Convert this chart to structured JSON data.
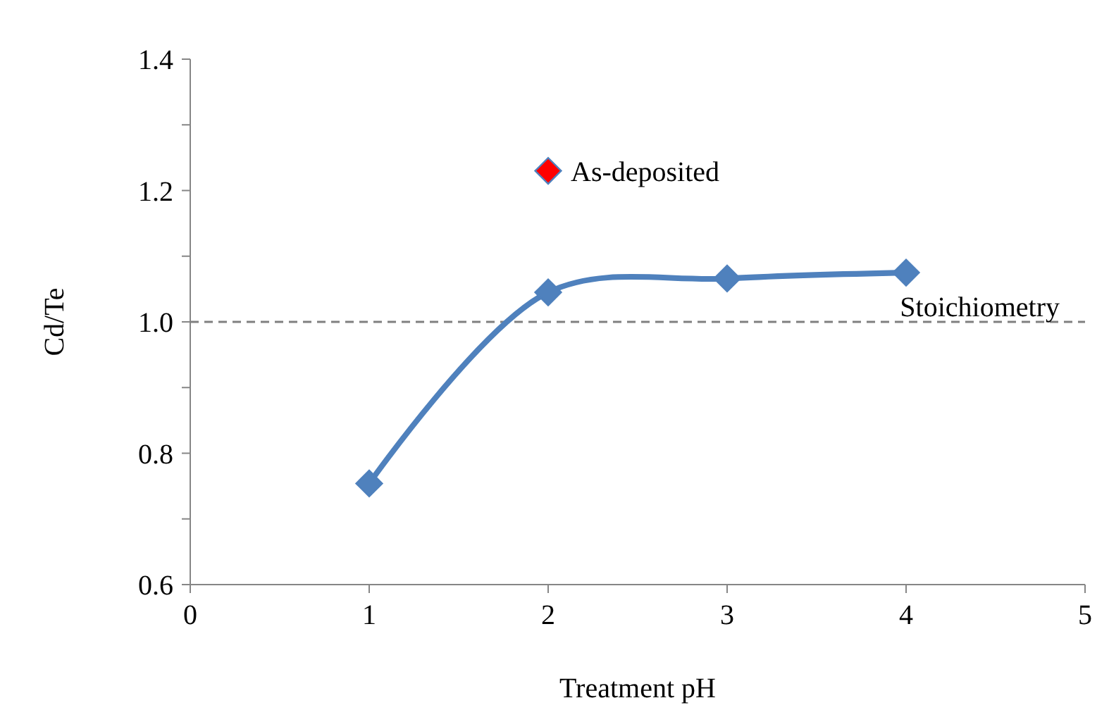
{
  "chart_data": {
    "type": "line",
    "xlabel": "Treatment pH",
    "ylabel": "Cd/Te",
    "xlim": [
      0,
      5
    ],
    "xticks": [
      0,
      1,
      2,
      3,
      4,
      5
    ],
    "ylim": [
      0.6,
      1.4
    ],
    "yticks": [
      {
        "value": 0.6,
        "label": "0.6"
      },
      {
        "value": 0.7,
        "label": null
      },
      {
        "value": 0.8,
        "label": "0.8"
      },
      {
        "value": 0.9,
        "label": null
      },
      {
        "value": 1,
        "label": "1.0"
      },
      {
        "value": 1.1,
        "label": null
      },
      {
        "value": 1.2,
        "label": "1.2"
      },
      {
        "value": 1.3,
        "label": null
      },
      {
        "value": 1.4,
        "label": "1.4"
      }
    ],
    "series": [
      {
        "color": "#4f81bd",
        "x": [
          1,
          2,
          3,
          4
        ],
        "values": [
          0.754,
          1.045,
          1.066,
          1.075
        ],
        "marker": "diamond"
      },
      {
        "type": "scatter",
        "name": "As-deposited",
        "color": "#ff0000",
        "x": [
          2
        ],
        "values": [
          1.23
        ],
        "marker": "diamond"
      }
    ],
    "ref_lines": [
      {
        "axis": "y",
        "value": 1,
        "label": "Stoichiometry",
        "color": "#808080",
        "line_style": "dashed"
      }
    ],
    "grid": false
  }
}
